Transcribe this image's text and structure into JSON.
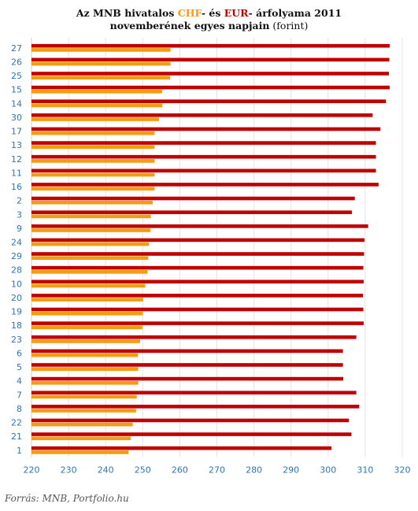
{
  "chart_data": {
    "type": "bar",
    "orientation": "horizontal",
    "title_line1": {
      "prefix": "Az MNB hivatalos ",
      "chf": "CHF",
      "mid": "- és ",
      "eur": "EUR",
      "suffix": "- árfolyama 2011"
    },
    "title_line2": {
      "bold": "novemberének  egyes napjain",
      "rest": " (forint)"
    },
    "categories": [
      "27",
      "26",
      "25",
      "15",
      "14",
      "30",
      "17",
      "13",
      "12",
      "11",
      "16",
      "2",
      "3",
      "9",
      "24",
      "29",
      "28",
      "10",
      "20",
      "19",
      "18",
      "23",
      "6",
      "5",
      "4",
      "7",
      "8",
      "22",
      "21",
      "1"
    ],
    "series": [
      {
        "name": "CHF",
        "color": "#f39c12",
        "values": [
          257.5,
          257.5,
          257.4,
          255.2,
          255.3,
          254.4,
          253.2,
          253.2,
          253.2,
          253.2,
          253.2,
          252.7,
          252.2,
          252.1,
          251.7,
          251.5,
          251.3,
          250.7,
          250.1,
          250.0,
          249.9,
          249.3,
          248.7,
          248.8,
          248.8,
          248.4,
          248.2,
          247.3,
          246.8,
          246.2
        ]
      },
      {
        "name": "EUR",
        "color": "#c00000",
        "values": [
          316.6,
          316.5,
          316.4,
          316.6,
          315.6,
          312.0,
          314.1,
          312.9,
          312.9,
          312.9,
          313.6,
          307.2,
          306.4,
          310.8,
          309.8,
          309.7,
          309.5,
          309.6,
          309.4,
          309.5,
          309.6,
          307.6,
          304.0,
          304.0,
          304.1,
          307.6,
          308.4,
          305.6,
          306.3,
          300.9
        ]
      }
    ],
    "xlim": [
      220,
      320
    ],
    "xticks": [
      220,
      230,
      240,
      250,
      260,
      270,
      280,
      290,
      300,
      310,
      320
    ],
    "tick_color": "#2e75b6",
    "grid": true,
    "grid_axis": "x",
    "legend": "none",
    "source": "Forrás: MNB, Portfolio.hu"
  }
}
